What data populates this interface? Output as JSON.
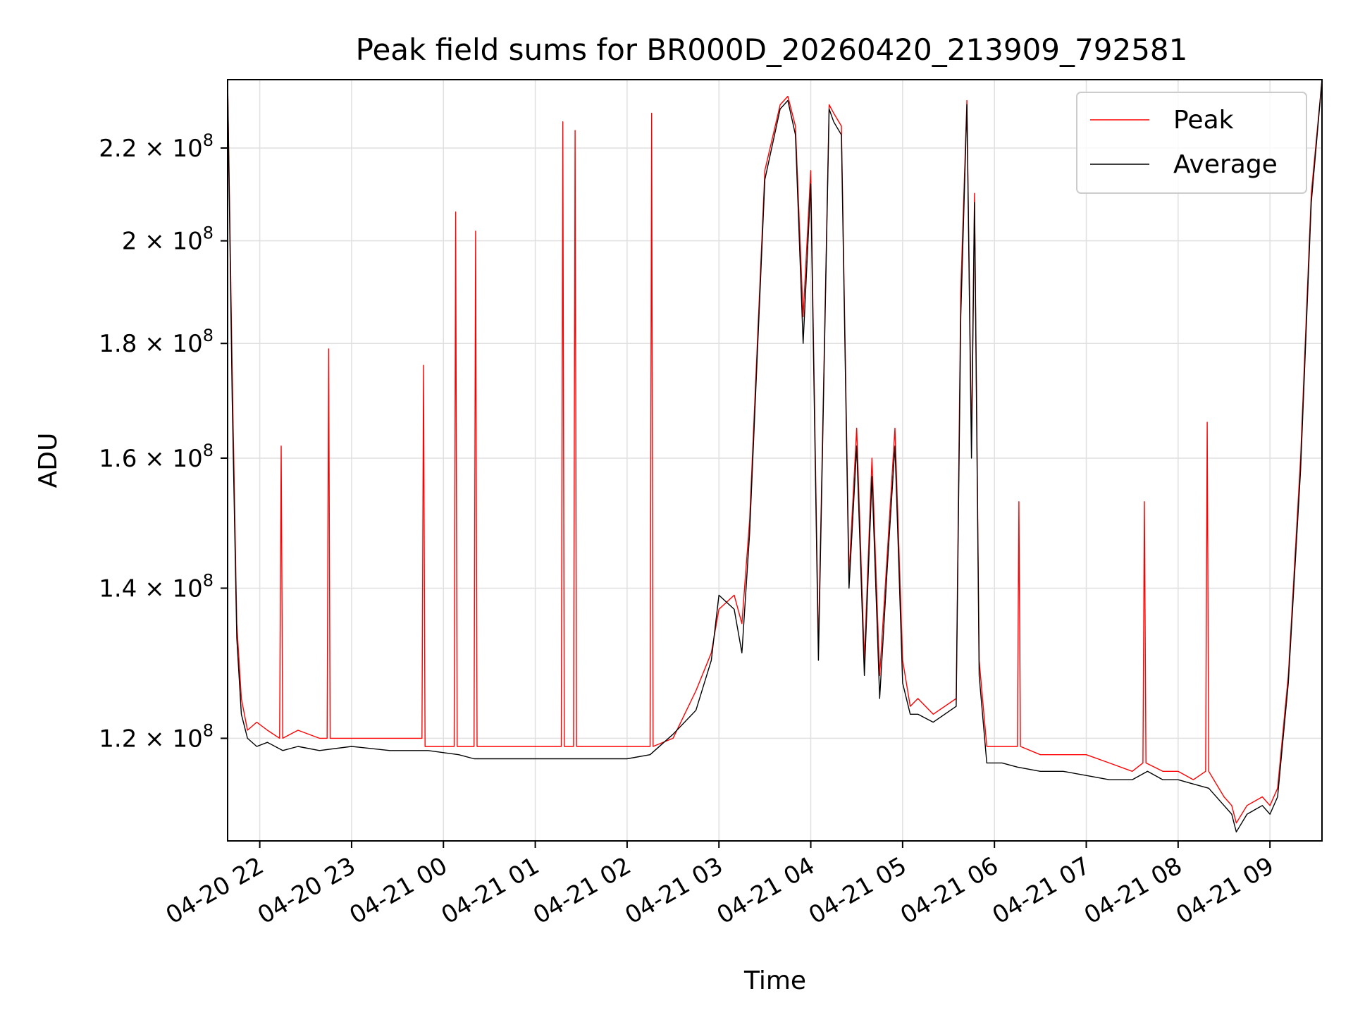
{
  "chart_data": {
    "type": "line",
    "title": "Peak field sums for BR000D_20260420_213909_792581",
    "xlabel": "Time",
    "ylabel": "ADU",
    "x_axis": {
      "kind": "datetime",
      "range": [
        "2026-04-20 21:39",
        "2026-04-21 09:34"
      ],
      "ticks": [
        "2026-04-20 22:00",
        "2026-04-20 23:00",
        "2026-04-21 00:00",
        "2026-04-21 01:00",
        "2026-04-21 02:00",
        "2026-04-21 03:00",
        "2026-04-21 04:00",
        "2026-04-21 05:00",
        "2026-04-21 06:00",
        "2026-04-21 07:00",
        "2026-04-21 08:00",
        "2026-04-21 09:00"
      ],
      "tick_labels": [
        "04-20 22",
        "04-20 23",
        "04-21 00",
        "04-21 01",
        "04-21 02",
        "04-21 03",
        "04-21 04",
        "04-21 05",
        "04-21 06",
        "04-21 07",
        "04-21 08",
        "04-21 09"
      ],
      "tick_label_rotation": 30
    },
    "y_axis": {
      "scale": "log",
      "range": [
        108000000,
        236000000
      ],
      "ticks": [
        120000000,
        140000000,
        160000000,
        180000000,
        200000000,
        220000000
      ],
      "tick_labels": [
        {
          "mantissa": "1.2",
          "exponent": "8"
        },
        {
          "mantissa": "1.4",
          "exponent": "8"
        },
        {
          "mantissa": "1.6",
          "exponent": "8"
        },
        {
          "mantissa": "1.8",
          "exponent": "8"
        },
        {
          "mantissa": "2",
          "exponent": "8"
        },
        {
          "mantissa": "2.2",
          "exponent": "8"
        }
      ]
    },
    "grid": true,
    "legend": {
      "placement": "top-right"
    },
    "series": [
      {
        "name": "Peak",
        "color": "#ff0000",
        "x": [
          "2026-04-20 21:39",
          "2026-04-20 21:42",
          "2026-04-20 21:45",
          "2026-04-20 21:48",
          "2026-04-20 21:52",
          "2026-04-20 21:58",
          "2026-04-20 22:05",
          "2026-04-20 22:13",
          "2026-04-20 22:14",
          "2026-04-20 22:15",
          "2026-04-20 22:25",
          "2026-04-20 22:39",
          "2026-04-20 22:44",
          "2026-04-20 22:45",
          "2026-04-20 22:46",
          "2026-04-20 23:00",
          "2026-04-20 23:10",
          "2026-04-20 23:25",
          "2026-04-20 23:46",
          "2026-04-20 23:47",
          "2026-04-20 23:48",
          "2026-04-21 00:07",
          "2026-04-21 00:08",
          "2026-04-21 00:09",
          "2026-04-21 00:20",
          "2026-04-21 00:21",
          "2026-04-21 00:22",
          "2026-04-21 00:35",
          "2026-04-21 00:50",
          "2026-04-21 01:05",
          "2026-04-21 01:17",
          "2026-04-21 01:18",
          "2026-04-21 01:19",
          "2026-04-21 01:25",
          "2026-04-21 01:26",
          "2026-04-21 01:27",
          "2026-04-21 01:45",
          "2026-04-21 02:00",
          "2026-04-21 02:15",
          "2026-04-21 02:16",
          "2026-04-21 02:17",
          "2026-04-21 02:30",
          "2026-04-21 02:45",
          "2026-04-21 02:55",
          "2026-04-21 03:00",
          "2026-04-21 03:10",
          "2026-04-21 03:15",
          "2026-04-21 03:20",
          "2026-04-21 03:30",
          "2026-04-21 03:40",
          "2026-04-21 03:45",
          "2026-04-21 03:50",
          "2026-04-21 03:55",
          "2026-04-21 04:00",
          "2026-04-21 04:05",
          "2026-04-21 04:12",
          "2026-04-21 04:15",
          "2026-04-21 04:20",
          "2026-04-21 04:25",
          "2026-04-21 04:30",
          "2026-04-21 04:35",
          "2026-04-21 04:40",
          "2026-04-21 04:45",
          "2026-04-21 04:50",
          "2026-04-21 04:55",
          "2026-04-21 05:00",
          "2026-04-21 05:05",
          "2026-04-21 05:10",
          "2026-04-21 05:20",
          "2026-04-21 05:35",
          "2026-04-21 05:38",
          "2026-04-21 05:42",
          "2026-04-21 05:45",
          "2026-04-21 05:47",
          "2026-04-21 05:50",
          "2026-04-21 05:55",
          "2026-04-21 06:05",
          "2026-04-21 06:15",
          "2026-04-21 06:16",
          "2026-04-21 06:17",
          "2026-04-21 06:30",
          "2026-04-21 06:45",
          "2026-04-21 07:00",
          "2026-04-21 07:15",
          "2026-04-21 07:30",
          "2026-04-21 07:37",
          "2026-04-21 07:38",
          "2026-04-21 07:39",
          "2026-04-21 07:50",
          "2026-04-21 08:00",
          "2026-04-21 08:10",
          "2026-04-21 08:18",
          "2026-04-21 08:19",
          "2026-04-21 08:20",
          "2026-04-21 08:30",
          "2026-04-21 08:35",
          "2026-04-21 08:38",
          "2026-04-21 08:45",
          "2026-04-21 08:55",
          "2026-04-21 09:00",
          "2026-04-21 09:05",
          "2026-04-21 09:12",
          "2026-04-21 09:20",
          "2026-04-21 09:27",
          "2026-04-21 09:34"
        ],
        "y": [
          236000000,
          175000000,
          135000000,
          125000000,
          121000000,
          122000000,
          121000000,
          120000000,
          162000000,
          120000000,
          121000000,
          120000000,
          120000000,
          179000000,
          120000000,
          120000000,
          120000000,
          120000000,
          120000000,
          176000000,
          119000000,
          119000000,
          206000000,
          119000000,
          119000000,
          202000000,
          119000000,
          119000000,
          119000000,
          119000000,
          119000000,
          226000000,
          119000000,
          119000000,
          224000000,
          119000000,
          119000000,
          119000000,
          119000000,
          228000000,
          119000000,
          120000000,
          126000000,
          131000000,
          137000000,
          139000000,
          135000000,
          150000000,
          215000000,
          230000000,
          232000000,
          225000000,
          185000000,
          215000000,
          132000000,
          230000000,
          228000000,
          225000000,
          142000000,
          165000000,
          130000000,
          160000000,
          128000000,
          145000000,
          165000000,
          130000000,
          124000000,
          125000000,
          123000000,
          125000000,
          190000000,
          231000000,
          163000000,
          210000000,
          130000000,
          119000000,
          119000000,
          119000000,
          153000000,
          119000000,
          118000000,
          118000000,
          118000000,
          117000000,
          116000000,
          117000000,
          153000000,
          117000000,
          116000000,
          116000000,
          115000000,
          116000000,
          166000000,
          116000000,
          113000000,
          112000000,
          110000000,
          112000000,
          113000000,
          112000000,
          114000000,
          128000000,
          160000000,
          210000000,
          236000000
        ]
      },
      {
        "name": "Average",
        "color": "#000000",
        "x": [
          "2026-04-20 21:39",
          "2026-04-20 21:42",
          "2026-04-20 21:45",
          "2026-04-20 21:48",
          "2026-04-20 21:52",
          "2026-04-20 21:58",
          "2026-04-20 22:05",
          "2026-04-20 22:15",
          "2026-04-20 22:25",
          "2026-04-20 22:39",
          "2026-04-20 23:00",
          "2026-04-20 23:25",
          "2026-04-20 23:50",
          "2026-04-21 00:10",
          "2026-04-21 00:20",
          "2026-04-21 00:35",
          "2026-04-21 00:50",
          "2026-04-21 01:05",
          "2026-04-21 01:20",
          "2026-04-21 01:35",
          "2026-04-21 01:50",
          "2026-04-21 02:00",
          "2026-04-21 02:15",
          "2026-04-21 02:30",
          "2026-04-21 02:45",
          "2026-04-21 02:55",
          "2026-04-21 03:00",
          "2026-04-21 03:10",
          "2026-04-21 03:15",
          "2026-04-21 03:20",
          "2026-04-21 03:30",
          "2026-04-21 03:40",
          "2026-04-21 03:45",
          "2026-04-21 03:50",
          "2026-04-21 03:55",
          "2026-04-21 04:00",
          "2026-04-21 04:05",
          "2026-04-21 04:12",
          "2026-04-21 04:15",
          "2026-04-21 04:20",
          "2026-04-21 04:25",
          "2026-04-21 04:30",
          "2026-04-21 04:35",
          "2026-04-21 04:40",
          "2026-04-21 04:45",
          "2026-04-21 04:50",
          "2026-04-21 04:55",
          "2026-04-21 05:00",
          "2026-04-21 05:05",
          "2026-04-21 05:10",
          "2026-04-21 05:20",
          "2026-04-21 05:35",
          "2026-04-21 05:38",
          "2026-04-21 05:42",
          "2026-04-21 05:45",
          "2026-04-21 05:47",
          "2026-04-21 05:50",
          "2026-04-21 05:55",
          "2026-04-21 06:05",
          "2026-04-21 06:15",
          "2026-04-21 06:30",
          "2026-04-21 06:45",
          "2026-04-21 07:00",
          "2026-04-21 07:15",
          "2026-04-21 07:30",
          "2026-04-21 07:40",
          "2026-04-21 07:50",
          "2026-04-21 08:00",
          "2026-04-21 08:10",
          "2026-04-21 08:20",
          "2026-04-21 08:30",
          "2026-04-21 08:35",
          "2026-04-21 08:38",
          "2026-04-21 08:45",
          "2026-04-21 08:55",
          "2026-04-21 09:00",
          "2026-04-21 09:05",
          "2026-04-21 09:12",
          "2026-04-21 09:20",
          "2026-04-21 09:27",
          "2026-04-21 09:34"
        ],
        "y": [
          236000000,
          170000000,
          133000000,
          123000000,
          120000000,
          119000000,
          119500000,
          118500000,
          119000000,
          118500000,
          119000000,
          118500000,
          118500000,
          118000000,
          117500000,
          117500000,
          117500000,
          117500000,
          117500000,
          117500000,
          117500000,
          117500000,
          118000000,
          120500000,
          123500000,
          130000000,
          139000000,
          137000000,
          131000000,
          148000000,
          213000000,
          229000000,
          231000000,
          223000000,
          180000000,
          212000000,
          130000000,
          229000000,
          226000000,
          223000000,
          140000000,
          162000000,
          128000000,
          157000000,
          125000000,
          143000000,
          162000000,
          127000000,
          123000000,
          123000000,
          122000000,
          124000000,
          185000000,
          230000000,
          160000000,
          208000000,
          128000000,
          117000000,
          117000000,
          116500000,
          116000000,
          116000000,
          115500000,
          115000000,
          115000000,
          116000000,
          115000000,
          115000000,
          114500000,
          114000000,
          112000000,
          111000000,
          109000000,
          111000000,
          112000000,
          111000000,
          113000000,
          127000000,
          158000000,
          208000000,
          236000000
        ]
      }
    ]
  }
}
